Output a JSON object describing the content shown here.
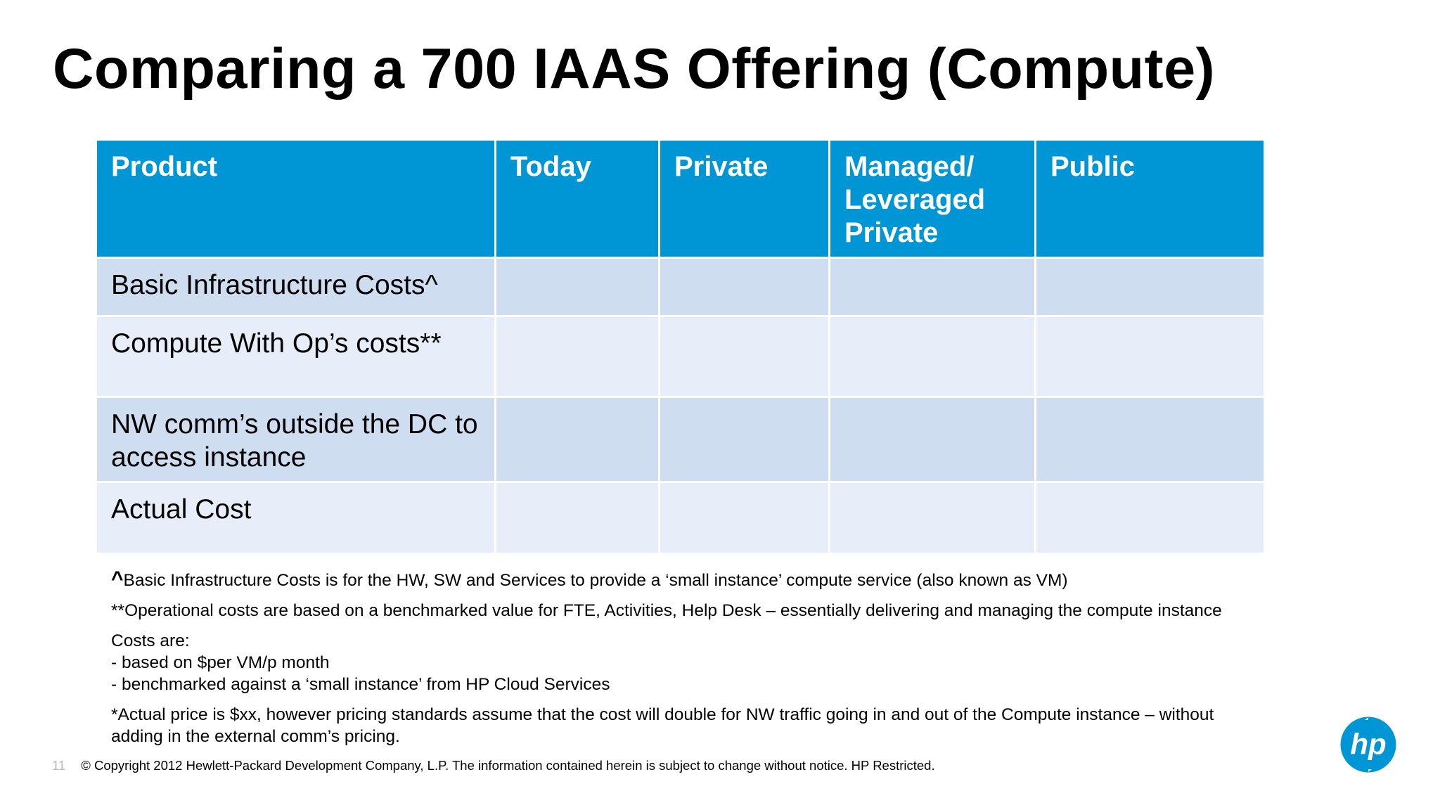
{
  "title": "Comparing a 700 IAAS Offering (Compute)",
  "table": {
    "headers": [
      "Product",
      "Today",
      "Private",
      "Managed/\nLeveraged\nPrivate",
      "Public"
    ],
    "rows": [
      {
        "product": "Basic Infrastructure Costs^"
      },
      {
        "product": "Compute With Op’s costs**"
      },
      {
        "product": "NW comm’s outside the DC to access instance"
      },
      {
        "product": "Actual Cost"
      }
    ]
  },
  "notes": {
    "note1_caret": "^",
    "note1": "Basic Infrastructure Costs is for the HW, SW and Services to provide a ‘small instance’ compute service (also known as VM)",
    "note2": "**Operational costs are based on a benchmarked value for FTE, Activities, Help Desk – essentially delivering and managing the compute instance",
    "note3_heading": "Costs are:",
    "note3_line1": "- based on $per VM/p month",
    "note3_line2": "- benchmarked against a ‘small instance’ from HP Cloud Services",
    "note4": "*Actual price is $xx, however pricing standards assume that the cost will double for NW traffic going in and out of the Compute instance – without adding in the external comm’s pricing."
  },
  "footer": {
    "page_number": "11",
    "copyright": "© Copyright 2012 Hewlett-Packard Development Company, L.P. The information contained herein is subject to change without notice. HP Restricted."
  },
  "logo": {
    "icon": "hp-logo-icon",
    "text": "hp",
    "color": "#0096d6"
  },
  "colors": {
    "header": "#0096d6",
    "row_dark": "#cfddf1",
    "row_light": "#e8eef9"
  }
}
